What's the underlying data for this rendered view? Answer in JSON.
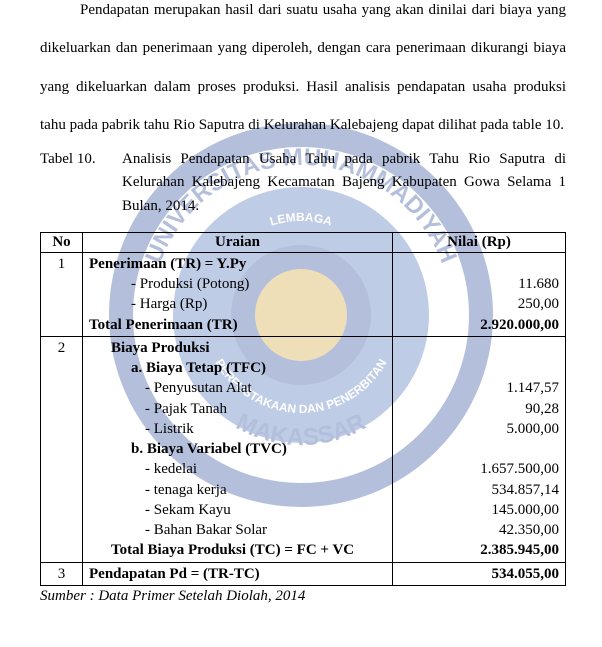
{
  "paragraph": {
    "first_sentence_lead": "Pendapatan merupakan hasil dari suatu usaha yang akan dinilai dari biaya",
    "rest": "yang dikeluarkan dan penerimaan yang diperoleh, dengan cara penerimaan dikurangi biaya yang dikeluarkan dalam proses produksi. Hasil analisis pendapatan usaha produksi tahu pada pabrik tahu Rio Saputra di Kelurahan Kalebajeng dapat dilihat pada table 10."
  },
  "caption": {
    "label": "Tabel 10.",
    "text": "Analisis Pendapatan Usaha Tahu pada pabrik Tahu Rio Saputra di Kelurahan Kalebajeng Kecamatan Bajeng  Kabupaten Gowa Selama 1 Bulan, 2014."
  },
  "table": {
    "headers": {
      "no": "No",
      "uraian": "Uraian",
      "nilai": "Nilai (Rp)"
    },
    "rows": [
      {
        "no": "1",
        "uraian_lines": [
          {
            "text": "Penerimaan (TR) = Y.Py",
            "bold": true,
            "indent": 0
          },
          {
            "text": "- Produksi (Potong)",
            "bold": false,
            "indent": 2
          },
          {
            "text": "- Harga (Rp)",
            "bold": false,
            "indent": 2
          },
          {
            "text": "Total  Penerimaan (TR)",
            "bold": true,
            "indent": 0
          }
        ],
        "nilai_lines": [
          "",
          "11.680",
          "250,00",
          "2.920.000,00"
        ],
        "nilai_bold_last": true
      },
      {
        "no": "2",
        "uraian_lines": [
          {
            "text": "Biaya Produksi",
            "bold": true,
            "indent": 1
          },
          {
            "text": "a. Biaya Tetap (TFC)",
            "bold": true,
            "indent": 2
          },
          {
            "text": "- Penyusutan Alat",
            "bold": false,
            "indent": 3
          },
          {
            "text": "- Pajak Tanah",
            "bold": false,
            "indent": 3
          },
          {
            "text": "- Listrik",
            "bold": false,
            "indent": 3
          },
          {
            "text": "b. Biaya Variabel (TVC)",
            "bold": true,
            "indent": 2
          },
          {
            "text": "- kedelai",
            "bold": false,
            "indent": 3
          },
          {
            "text": "- tenaga kerja",
            "bold": false,
            "indent": 3
          },
          {
            "text": "- Sekam Kayu",
            "bold": false,
            "indent": 3
          },
          {
            "text": "- Bahan Bakar Solar",
            "bold": false,
            "indent": 3
          },
          {
            "text": "Total Biaya Produksi (TC) = FC + VC",
            "bold": true,
            "indent": 1
          }
        ],
        "nilai_lines": [
          "",
          "",
          "1.147,57",
          "90,28",
          "5.000,00",
          "",
          "1.657.500,00",
          "534.857,14",
          "145.000,00",
          "42.350,00",
          "2.385.945,00"
        ],
        "nilai_bold_last": true
      },
      {
        "no": "3",
        "uraian_lines": [
          {
            "text": "Pendapatan  Pd = (TR-TC)",
            "bold": true,
            "indent": 0
          }
        ],
        "nilai_lines": [
          "534.055,00"
        ],
        "nilai_bold_last": true
      }
    ]
  },
  "source": "Sumber : Data Primer Setelah Diolah, 2014",
  "watermark": {
    "outer_ring_color": "#2a4b9b",
    "inner_fill_color": "#4a6fb8",
    "accent_color": "#d4a63a",
    "text_top": "UNIVERSITAS MUHAMMADIYAH",
    "text_bottom": "MAKASSAR",
    "text_inner": "LEMBAGA PERPUSTAKAAN DAN PENERBITAN"
  }
}
